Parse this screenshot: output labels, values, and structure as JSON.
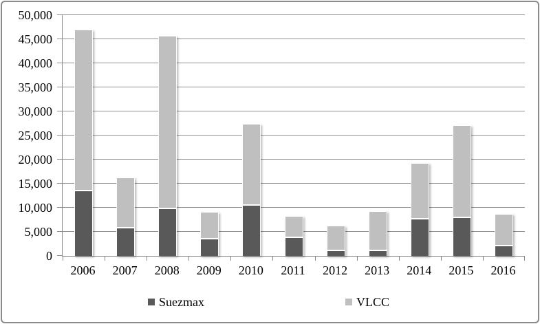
{
  "frame": {
    "background_color": "#FFFFFF",
    "border_color": "#8A8A8A"
  },
  "chart_data": {
    "type": "bar",
    "stacked": true,
    "title": "",
    "xlabel": "",
    "ylabel": "",
    "categories": [
      "2006",
      "2007",
      "2008",
      "2009",
      "2010",
      "2011",
      "2012",
      "2013",
      "2014",
      "2015",
      "2016"
    ],
    "series": [
      {
        "name": "Suezmax",
        "color": "#595959",
        "values": [
          13600,
          5900,
          9900,
          3500,
          10600,
          3900,
          1200,
          1100,
          7700,
          8000,
          2100
        ]
      },
      {
        "name": "VLCC",
        "color": "#BFBFBF",
        "values": [
          33400,
          10400,
          35900,
          5600,
          16800,
          4400,
          5100,
          8200,
          11600,
          19200,
          6600
        ]
      }
    ],
    "stack_totals": [
      47000,
      16300,
      45800,
      9100,
      27400,
      8300,
      6300,
      9300,
      19300,
      27200,
      8700
    ],
    "ylim": [
      0,
      50000
    ],
    "ytick_step": 5000,
    "ytick_labels": [
      "0",
      "5,000",
      "10,000",
      "15,000",
      "20,000",
      "25,000",
      "30,000",
      "35,000",
      "40,000",
      "45,000",
      "50,000"
    ],
    "grid": true,
    "gridline_color": "#8F8F8F",
    "axis_color": "#8A8A8A",
    "text_color": "#000000",
    "legend_position": "bottom"
  }
}
